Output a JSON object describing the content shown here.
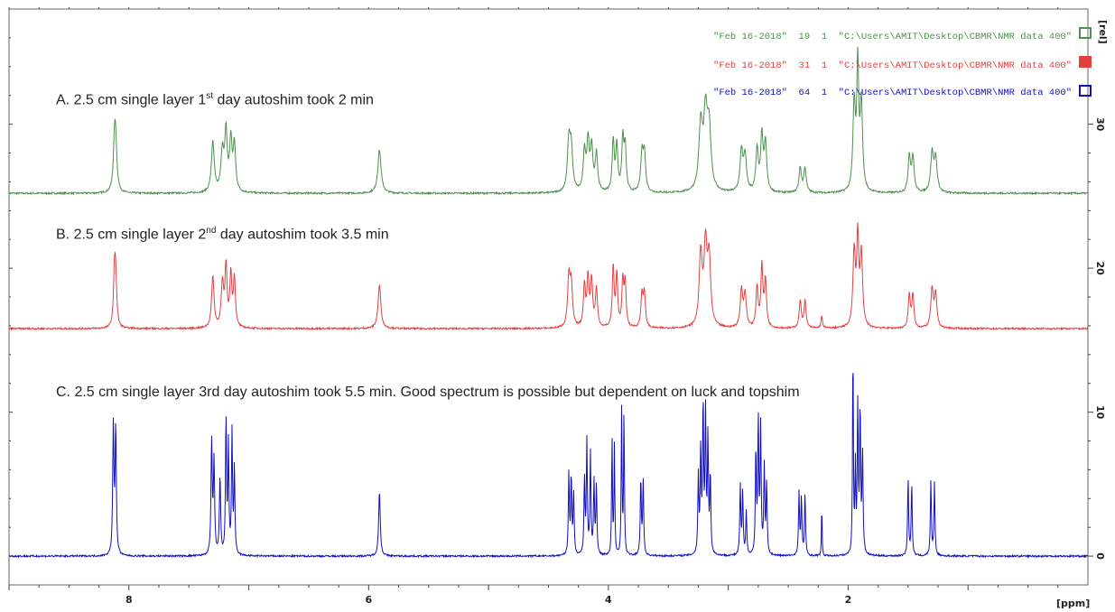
{
  "chart_data": {
    "type": "line",
    "x_axis": {
      "label": "[ppm]",
      "reversed": true,
      "range": [
        9.0,
        0.0
      ],
      "ticks": [
        "8",
        "6",
        "4",
        "2"
      ]
    },
    "y_axis": {
      "label": "[rel]",
      "range": [
        -2,
        38
      ],
      "ticks": [
        "0",
        "10",
        "20",
        "30"
      ]
    },
    "legend": {
      "placement": "top-right",
      "entries": [
        {
          "text": "\"Feb 16-2018\"  19  1  \"C:\\Users\\AMIT\\Desktop\\CBMR\\NMR data 400\"",
          "color": "#4f8f4f",
          "marker": "open-square"
        },
        {
          "text": "\"Feb 16-2018\"  31  1  \"C:\\Users\\AMIT\\Desktop\\CBMR\\NMR data 400\"",
          "color": "#e34040",
          "marker": "filled-square"
        },
        {
          "text": "\"Feb 16-2018\"  64  1  \"C:\\Users\\AMIT\\Desktop\\CBMR\\NMR data 400\"",
          "color": "#1010c0",
          "marker": "open-square"
        }
      ]
    },
    "annotations": [
      {
        "prefix": "A. 2.5 cm single layer 1",
        "sup": "st",
        "suffix": " day autoshim took 2 min"
      },
      {
        "prefix": "B. 2.5 cm single layer 2",
        "sup": "nd",
        "suffix": " day autoshim took 3.5 min"
      },
      {
        "prefix": "C. 2.5 cm single layer 3rd day autoshim took 5.5 min. Good spectrum is possible but dependent on luck and topshim",
        "sup": "",
        "suffix": ""
      }
    ],
    "series": [
      {
        "color": "#4f8f4f",
        "baseline": 25.2,
        "peaks": [
          {
            "ppm": 8.12,
            "height": 3.2,
            "width": 0.012
          },
          {
            "ppm": 8.11,
            "height": 2.8,
            "width": 0.012
          },
          {
            "ppm": 7.3,
            "height": 3.5,
            "width": 0.014
          },
          {
            "ppm": 7.22,
            "height": 2.8,
            "width": 0.014
          },
          {
            "ppm": 7.19,
            "height": 4.0,
            "width": 0.012
          },
          {
            "ppm": 7.15,
            "height": 3.5,
            "width": 0.012
          },
          {
            "ppm": 7.12,
            "height": 3.2,
            "width": 0.012
          },
          {
            "ppm": 5.91,
            "height": 3.0,
            "width": 0.016
          },
          {
            "ppm": 4.33,
            "height": 3.4,
            "width": 0.014
          },
          {
            "ppm": 4.31,
            "height": 2.8,
            "width": 0.014
          },
          {
            "ppm": 4.2,
            "height": 2.7,
            "width": 0.012
          },
          {
            "ppm": 4.17,
            "height": 3.4,
            "width": 0.012
          },
          {
            "ppm": 4.14,
            "height": 3.0,
            "width": 0.012
          },
          {
            "ppm": 4.1,
            "height": 2.6,
            "width": 0.012
          },
          {
            "ppm": 3.96,
            "height": 3.6,
            "width": 0.01
          },
          {
            "ppm": 3.93,
            "height": 3.2,
            "width": 0.01
          },
          {
            "ppm": 3.88,
            "height": 3.6,
            "width": 0.01
          },
          {
            "ppm": 3.86,
            "height": 3.0,
            "width": 0.01
          },
          {
            "ppm": 3.72,
            "height": 2.6,
            "width": 0.012
          },
          {
            "ppm": 3.7,
            "height": 2.6,
            "width": 0.012
          },
          {
            "ppm": 3.23,
            "height": 4.5,
            "width": 0.018
          },
          {
            "ppm": 3.19,
            "height": 5.0,
            "width": 0.018
          },
          {
            "ppm": 3.16,
            "height": 4.2,
            "width": 0.018
          },
          {
            "ppm": 2.89,
            "height": 2.8,
            "width": 0.014
          },
          {
            "ppm": 2.86,
            "height": 2.4,
            "width": 0.014
          },
          {
            "ppm": 2.76,
            "height": 2.9,
            "width": 0.012
          },
          {
            "ppm": 2.72,
            "height": 3.8,
            "width": 0.012
          },
          {
            "ppm": 2.69,
            "height": 3.3,
            "width": 0.012
          },
          {
            "ppm": 2.4,
            "height": 1.7,
            "width": 0.012
          },
          {
            "ppm": 2.36,
            "height": 1.7,
            "width": 0.012
          },
          {
            "ppm": 1.95,
            "height": 6.0,
            "width": 0.012
          },
          {
            "ppm": 1.92,
            "height": 8.5,
            "width": 0.01
          },
          {
            "ppm": 1.89,
            "height": 6.0,
            "width": 0.012
          },
          {
            "ppm": 1.49,
            "height": 2.5,
            "width": 0.012
          },
          {
            "ppm": 1.46,
            "height": 2.4,
            "width": 0.012
          },
          {
            "ppm": 1.3,
            "height": 2.7,
            "width": 0.014
          },
          {
            "ppm": 1.27,
            "height": 2.3,
            "width": 0.014
          }
        ]
      },
      {
        "color": "#e34040",
        "baseline": 15.8,
        "peaks": [
          {
            "ppm": 8.12,
            "height": 3.6,
            "width": 0.01
          },
          {
            "ppm": 8.11,
            "height": 3.0,
            "width": 0.01
          },
          {
            "ppm": 7.3,
            "height": 3.6,
            "width": 0.012
          },
          {
            "ppm": 7.22,
            "height": 3.0,
            "width": 0.012
          },
          {
            "ppm": 7.19,
            "height": 4.2,
            "width": 0.01
          },
          {
            "ppm": 7.15,
            "height": 3.6,
            "width": 0.01
          },
          {
            "ppm": 7.12,
            "height": 3.4,
            "width": 0.01
          },
          {
            "ppm": 5.91,
            "height": 3.0,
            "width": 0.014
          },
          {
            "ppm": 4.33,
            "height": 3.4,
            "width": 0.012
          },
          {
            "ppm": 4.31,
            "height": 2.8,
            "width": 0.012
          },
          {
            "ppm": 4.2,
            "height": 2.9,
            "width": 0.01
          },
          {
            "ppm": 4.17,
            "height": 3.4,
            "width": 0.01
          },
          {
            "ppm": 4.14,
            "height": 3.2,
            "width": 0.01
          },
          {
            "ppm": 4.1,
            "height": 2.7,
            "width": 0.01
          },
          {
            "ppm": 3.96,
            "height": 4.2,
            "width": 0.009
          },
          {
            "ppm": 3.93,
            "height": 3.6,
            "width": 0.009
          },
          {
            "ppm": 3.88,
            "height": 3.2,
            "width": 0.009
          },
          {
            "ppm": 3.86,
            "height": 3.0,
            "width": 0.009
          },
          {
            "ppm": 3.72,
            "height": 2.3,
            "width": 0.01
          },
          {
            "ppm": 3.7,
            "height": 2.3,
            "width": 0.01
          },
          {
            "ppm": 3.23,
            "height": 5.0,
            "width": 0.015
          },
          {
            "ppm": 3.19,
            "height": 5.4,
            "width": 0.015
          },
          {
            "ppm": 3.16,
            "height": 4.6,
            "width": 0.015
          },
          {
            "ppm": 2.89,
            "height": 2.6,
            "width": 0.012
          },
          {
            "ppm": 2.86,
            "height": 2.3,
            "width": 0.012
          },
          {
            "ppm": 2.76,
            "height": 2.8,
            "width": 0.01
          },
          {
            "ppm": 2.72,
            "height": 4.2,
            "width": 0.01
          },
          {
            "ppm": 2.69,
            "height": 3.2,
            "width": 0.01
          },
          {
            "ppm": 2.4,
            "height": 1.9,
            "width": 0.01
          },
          {
            "ppm": 2.36,
            "height": 1.9,
            "width": 0.01
          },
          {
            "ppm": 2.22,
            "height": 0.8,
            "width": 0.008
          },
          {
            "ppm": 1.95,
            "height": 5.2,
            "width": 0.012
          },
          {
            "ppm": 1.92,
            "height": 6.0,
            "width": 0.01
          },
          {
            "ppm": 1.89,
            "height": 5.0,
            "width": 0.012
          },
          {
            "ppm": 1.49,
            "height": 2.3,
            "width": 0.01
          },
          {
            "ppm": 1.46,
            "height": 2.3,
            "width": 0.01
          },
          {
            "ppm": 1.3,
            "height": 2.7,
            "width": 0.012
          },
          {
            "ppm": 1.27,
            "height": 2.3,
            "width": 0.012
          }
        ]
      },
      {
        "color": "#1010c0",
        "baseline": 0,
        "peaks": [
          {
            "ppm": 8.13,
            "height": 8.9,
            "width": 0.006
          },
          {
            "ppm": 8.11,
            "height": 8.8,
            "width": 0.006
          },
          {
            "ppm": 7.31,
            "height": 7.8,
            "width": 0.006
          },
          {
            "ppm": 7.29,
            "height": 6.4,
            "width": 0.006
          },
          {
            "ppm": 7.24,
            "height": 5.4,
            "width": 0.006
          },
          {
            "ppm": 7.19,
            "height": 9.6,
            "width": 0.005
          },
          {
            "ppm": 7.17,
            "height": 7.5,
            "width": 0.005
          },
          {
            "ppm": 7.14,
            "height": 8.5,
            "width": 0.005
          },
          {
            "ppm": 7.12,
            "height": 6.0,
            "width": 0.005
          },
          {
            "ppm": 5.91,
            "height": 4.5,
            "width": 0.008
          },
          {
            "ppm": 4.33,
            "height": 5.7,
            "width": 0.005
          },
          {
            "ppm": 4.31,
            "height": 5.5,
            "width": 0.005
          },
          {
            "ppm": 4.29,
            "height": 4.3,
            "width": 0.005
          },
          {
            "ppm": 4.2,
            "height": 5.3,
            "width": 0.005
          },
          {
            "ppm": 4.18,
            "height": 7.8,
            "width": 0.005
          },
          {
            "ppm": 4.15,
            "height": 7.0,
            "width": 0.005
          },
          {
            "ppm": 4.12,
            "height": 5.0,
            "width": 0.005
          },
          {
            "ppm": 4.1,
            "height": 4.8,
            "width": 0.005
          },
          {
            "ppm": 3.97,
            "height": 8.2,
            "width": 0.004
          },
          {
            "ppm": 3.95,
            "height": 7.5,
            "width": 0.004
          },
          {
            "ppm": 3.89,
            "height": 10.1,
            "width": 0.004
          },
          {
            "ppm": 3.87,
            "height": 10.1,
            "width": 0.004
          },
          {
            "ppm": 3.73,
            "height": 5.4,
            "width": 0.005
          },
          {
            "ppm": 3.71,
            "height": 5.2,
            "width": 0.005
          },
          {
            "ppm": 3.25,
            "height": 5.4,
            "width": 0.005
          },
          {
            "ppm": 3.23,
            "height": 7.2,
            "width": 0.005
          },
          {
            "ppm": 3.21,
            "height": 10.4,
            "width": 0.005
          },
          {
            "ppm": 3.19,
            "height": 9.6,
            "width": 0.005
          },
          {
            "ppm": 3.17,
            "height": 8.0,
            "width": 0.005
          },
          {
            "ppm": 3.15,
            "height": 5.5,
            "width": 0.005
          },
          {
            "ppm": 2.9,
            "height": 4.8,
            "width": 0.005
          },
          {
            "ppm": 2.88,
            "height": 4.3,
            "width": 0.005
          },
          {
            "ppm": 2.85,
            "height": 3.0,
            "width": 0.005
          },
          {
            "ppm": 2.77,
            "height": 7.2,
            "width": 0.005
          },
          {
            "ppm": 2.75,
            "height": 9.3,
            "width": 0.005
          },
          {
            "ppm": 2.73,
            "height": 8.8,
            "width": 0.005
          },
          {
            "ppm": 2.7,
            "height": 6.0,
            "width": 0.005
          },
          {
            "ppm": 2.68,
            "height": 5.0,
            "width": 0.005
          },
          {
            "ppm": 2.41,
            "height": 4.3,
            "width": 0.005
          },
          {
            "ppm": 2.39,
            "height": 4.0,
            "width": 0.005
          },
          {
            "ppm": 2.36,
            "height": 4.3,
            "width": 0.005
          },
          {
            "ppm": 2.22,
            "height": 3.8,
            "width": 0.003
          },
          {
            "ppm": 1.96,
            "height": 14.8,
            "width": 0.004
          },
          {
            "ppm": 1.94,
            "height": 6.0,
            "width": 0.004
          },
          {
            "ppm": 1.92,
            "height": 10.2,
            "width": 0.005
          },
          {
            "ppm": 1.9,
            "height": 10.0,
            "width": 0.005
          },
          {
            "ppm": 1.88,
            "height": 7.0,
            "width": 0.005
          },
          {
            "ppm": 1.5,
            "height": 5.4,
            "width": 0.005
          },
          {
            "ppm": 1.47,
            "height": 5.0,
            "width": 0.005
          },
          {
            "ppm": 1.31,
            "height": 5.2,
            "width": 0.005
          },
          {
            "ppm": 1.28,
            "height": 5.0,
            "width": 0.005
          }
        ]
      }
    ]
  }
}
